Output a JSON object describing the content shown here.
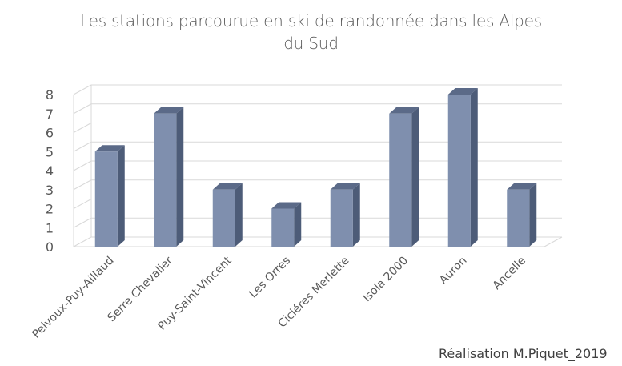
{
  "chart_data": {
    "type": "bar",
    "title_line1": "Les stations parcourue en ski de randonnée dans les Alpes",
    "title_line2": "du Sud",
    "categories": [
      "Pelvoux-Puy-Aillaud",
      "Serre Chevalier",
      "Puy-Saint-Vincent",
      "Les Orres",
      "Ciciéres Merlette",
      "Isola 2000",
      "Auron",
      "Ancelle"
    ],
    "values": [
      5,
      7,
      3,
      2,
      3,
      7,
      8,
      3
    ],
    "y_ticks": [
      "0",
      "1",
      "2",
      "3",
      "4",
      "5",
      "6",
      "7",
      "8"
    ],
    "ylim": [
      0,
      8
    ],
    "grid": true,
    "style": "3d-column",
    "colors": {
      "bar_front": "#7f8fae",
      "bar_side": "#4d5c78",
      "bar_top": "#5b6a88",
      "grid": "#d9d9d9",
      "text": "#595959"
    }
  },
  "credit": "Réalisation M.Piquet_2019"
}
